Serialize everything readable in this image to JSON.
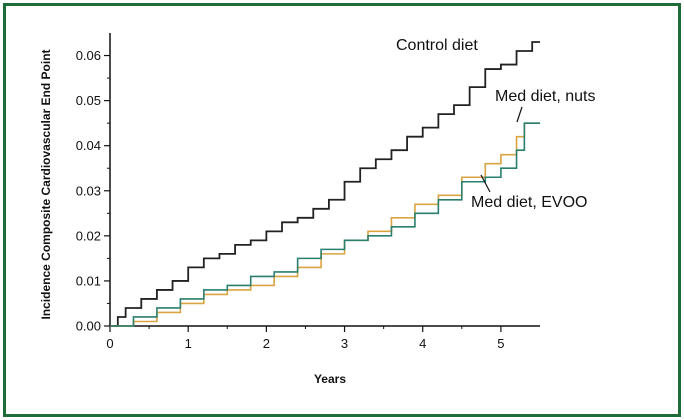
{
  "frame": {
    "border_color": "#1f6b3a"
  },
  "chart_data": {
    "type": "line",
    "title": "",
    "xlabel": "Years",
    "ylabel": "Incidence Composite Cardiovascular End Point",
    "xlim": [
      0,
      5.5
    ],
    "ylim": [
      0,
      0.065
    ],
    "x_ticks": [
      0,
      1,
      2,
      3,
      4,
      5
    ],
    "y_ticks": [
      "0.00",
      "0.01",
      "0.02",
      "0.03",
      "0.04",
      "0.05",
      "0.06"
    ],
    "legend": "none (labels placed next to lines)",
    "grid": false,
    "series": [
      {
        "name": "Control diet",
        "color": "#222222",
        "step": true,
        "x": [
          0,
          0.1,
          0.2,
          0.4,
          0.6,
          0.8,
          1.0,
          1.2,
          1.4,
          1.6,
          1.8,
          2.0,
          2.2,
          2.4,
          2.6,
          2.8,
          3.0,
          3.2,
          3.4,
          3.6,
          3.8,
          4.0,
          4.2,
          4.4,
          4.6,
          4.8,
          5.0,
          5.2,
          5.3,
          5.4,
          5.5
        ],
        "y": [
          0,
          0.002,
          0.004,
          0.006,
          0.008,
          0.01,
          0.013,
          0.015,
          0.016,
          0.018,
          0.019,
          0.021,
          0.023,
          0.024,
          0.026,
          0.028,
          0.032,
          0.035,
          0.037,
          0.039,
          0.042,
          0.044,
          0.047,
          0.049,
          0.053,
          0.057,
          0.058,
          0.061,
          0.061,
          0.063,
          0.063
        ]
      },
      {
        "name": "Med diet, nuts",
        "color": "#d9a441",
        "step": true,
        "x": [
          0,
          0.3,
          0.6,
          0.9,
          1.2,
          1.5,
          1.8,
          2.1,
          2.4,
          2.7,
          3.0,
          3.3,
          3.6,
          3.9,
          4.2,
          4.5,
          4.8,
          5.0,
          5.2,
          5.3,
          5.5
        ],
        "y": [
          0,
          0.001,
          0.003,
          0.005,
          0.007,
          0.008,
          0.009,
          0.011,
          0.013,
          0.016,
          0.019,
          0.021,
          0.024,
          0.027,
          0.029,
          0.033,
          0.036,
          0.038,
          0.042,
          0.045,
          0.045
        ]
      },
      {
        "name": "Med diet, EVOO",
        "color": "#2a7f6f",
        "step": true,
        "x": [
          0,
          0.3,
          0.6,
          0.9,
          1.2,
          1.5,
          1.8,
          2.1,
          2.4,
          2.7,
          3.0,
          3.3,
          3.6,
          3.9,
          4.2,
          4.5,
          4.8,
          5.0,
          5.2,
          5.3,
          5.5
        ],
        "y": [
          0,
          0.002,
          0.004,
          0.006,
          0.008,
          0.009,
          0.011,
          0.012,
          0.015,
          0.017,
          0.019,
          0.02,
          0.022,
          0.025,
          0.028,
          0.032,
          0.033,
          0.035,
          0.039,
          0.045,
          0.045
        ]
      }
    ],
    "annotations": [
      {
        "text": "Control diet",
        "series": 0
      },
      {
        "text": "Med diet, nuts",
        "series": 1
      },
      {
        "text": "Med diet, EVOO",
        "series": 2
      }
    ]
  }
}
